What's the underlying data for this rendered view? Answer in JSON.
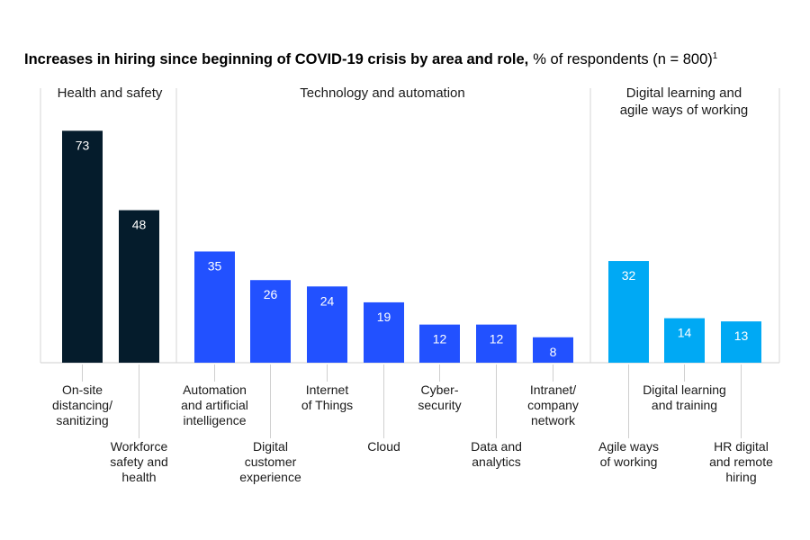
{
  "chart_data": {
    "type": "bar",
    "title": "Increases in hiring since beginning of COVID-19 crisis by area and role,",
    "subtitle": "% of respondents (n = 800)",
    "footnote_marker": "1",
    "ylim": [
      0,
      80
    ],
    "grid": false,
    "groups": [
      {
        "name": "Health and safety",
        "name_lines": [
          "Health and safety"
        ],
        "color": "#051c2c",
        "bars": [
          {
            "label": [
              "On-site",
              "distancing/",
              "sanitizing"
            ],
            "value": 73
          },
          {
            "label": [
              "Workforce",
              "safety and",
              "health"
            ],
            "value": 48
          }
        ]
      },
      {
        "name": "Technology and automation",
        "name_lines": [
          "Technology and automation"
        ],
        "color": "#2251ff",
        "bars": [
          {
            "label": [
              "Automation",
              "and artificial",
              "intelligence"
            ],
            "value": 35
          },
          {
            "label": [
              "Digital",
              "customer",
              "experience"
            ],
            "value": 26
          },
          {
            "label": [
              "Internet",
              "of Things"
            ],
            "value": 24
          },
          {
            "label": [
              "Cloud"
            ],
            "value": 19
          },
          {
            "label": [
              "Cyber-",
              "security"
            ],
            "value": 12
          },
          {
            "label": [
              "Data and",
              "analytics"
            ],
            "value": 12
          },
          {
            "label": [
              "Intranet/",
              "company",
              "network"
            ],
            "value": 8
          }
        ]
      },
      {
        "name": "Digital learning and agile ways of working",
        "name_lines": [
          "Digital learning and",
          "agile ways of working"
        ],
        "color": "#00a9f4",
        "bars": [
          {
            "label": [
              "Agile ways",
              "of working"
            ],
            "value": 32
          },
          {
            "label": [
              "Digital learning",
              "and training"
            ],
            "value": 14
          },
          {
            "label": [
              "HR digital",
              "and remote",
              "hiring"
            ],
            "value": 13
          }
        ]
      }
    ]
  }
}
